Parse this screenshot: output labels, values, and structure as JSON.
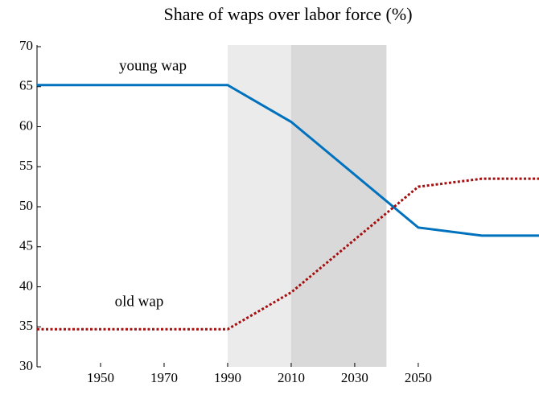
{
  "chart_data": {
    "type": "line",
    "title": "Share of waps over labor force (%)",
    "x": [
      1930,
      1990,
      2010,
      2050,
      2070,
      2088
    ],
    "series": [
      {
        "name": "young wap",
        "color": "#0072bd",
        "style": "solid",
        "values": [
          65.2,
          65.2,
          60.6,
          47.4,
          46.4,
          46.4
        ]
      },
      {
        "name": "old wap",
        "color": "#a50f0f",
        "style": "dotted",
        "values": [
          34.7,
          34.7,
          39.3,
          52.5,
          53.5,
          53.5
        ]
      }
    ],
    "shaded_regions": [
      {
        "x": [
          1990,
          2010
        ],
        "color": "#ebebeb"
      },
      {
        "x": [
          2010,
          2040
        ],
        "color": "#d9d9d9"
      }
    ],
    "xlim": [
      1930,
      2088
    ],
    "ylim": [
      30,
      70.2
    ],
    "xticks": [
      1950,
      1970,
      1990,
      2010,
      2030,
      2050
    ],
    "yticks": [
      30,
      35,
      40,
      45,
      50,
      55,
      60,
      65,
      70
    ]
  }
}
